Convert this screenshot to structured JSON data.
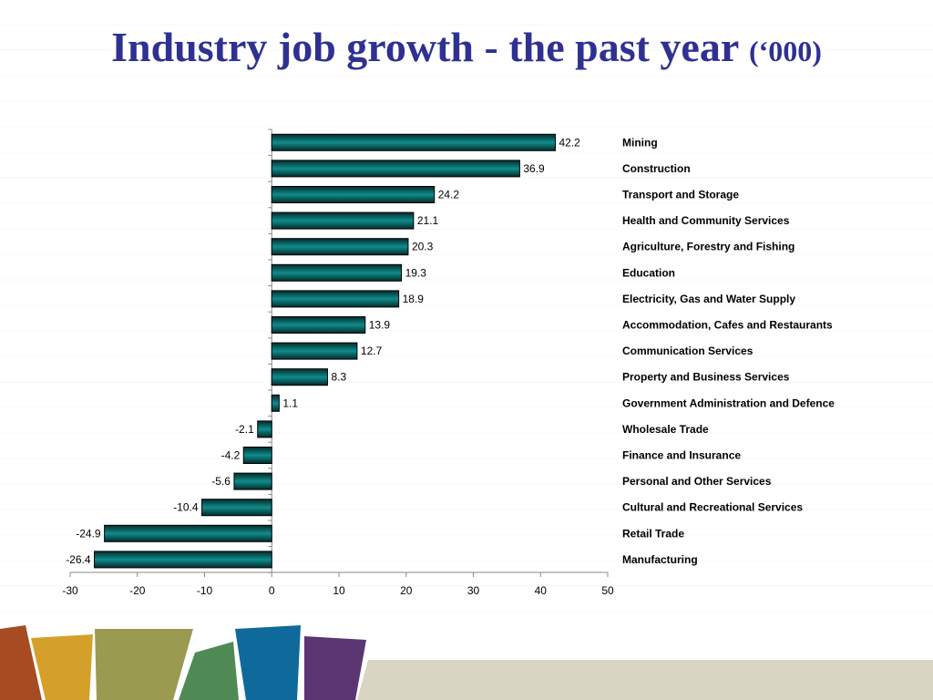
{
  "header": {
    "title": "Industry job growth - the past year",
    "title_unit": "(‘000)"
  },
  "chart_data": {
    "type": "bar",
    "orientation": "horizontal",
    "categories": [
      "Mining",
      "Construction",
      "Transport and Storage",
      "Health and Community Services",
      "Agriculture, Forestry and Fishing",
      "Education",
      "Electricity, Gas and Water Supply",
      "Accommodation, Cafes and Restaurants",
      "Communication Services",
      "Property and Business Services",
      "Government Administration and Defence",
      "Wholesale Trade",
      "Finance and Insurance",
      "Personal and Other Services",
      "Cultural and Recreational Services",
      "Retail Trade",
      "Manufacturing"
    ],
    "values": [
      42.2,
      36.9,
      24.2,
      21.1,
      20.3,
      19.3,
      18.9,
      13.9,
      12.7,
      8.3,
      1.1,
      -2.1,
      -4.2,
      -5.6,
      -10.4,
      -24.9,
      -26.4
    ],
    "data_labels": [
      "42.2",
      "36.9",
      "24.2",
      "21.1",
      "20.3",
      "19.3",
      "18.9",
      "13.9",
      "12.7",
      "8.3",
      "1.1",
      "-2.1",
      "-4.2",
      "-5.6",
      "-10.4",
      "-24.9",
      "-26.4"
    ],
    "x_ticks": [
      "-30",
      "-20",
      "-10",
      "0",
      "10",
      "20",
      "30",
      "40",
      "50"
    ],
    "xlim": [
      -30,
      50
    ],
    "grid": false,
    "legend": false,
    "bar_color": "#0f7f80",
    "bar_dark": "#052a2a"
  },
  "footer": {
    "colors": [
      "#a64b22",
      "#d4a02a",
      "#9a9a50",
      "#4f8a55",
      "#0f6a9b",
      "#5b3672",
      "#d9d5c3"
    ]
  }
}
